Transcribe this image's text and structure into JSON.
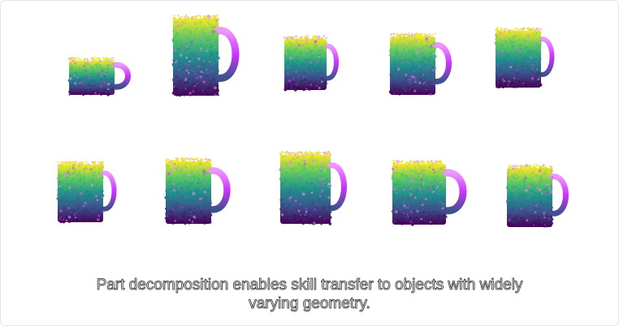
{
  "caption": {
    "line1": "Part decomposition enables skill transfer to objects with widely",
    "line2": "varying geometry."
  },
  "figure": {
    "rows": 2,
    "columns": 5,
    "subject": "mug point clouds",
    "colormap": [
      "#440154",
      "#3b528b",
      "#21918c",
      "#5ec962",
      "#fde725"
    ],
    "handle_colors": [
      "#cc33ff",
      "#ff66ee",
      "#ee99ff"
    ]
  }
}
